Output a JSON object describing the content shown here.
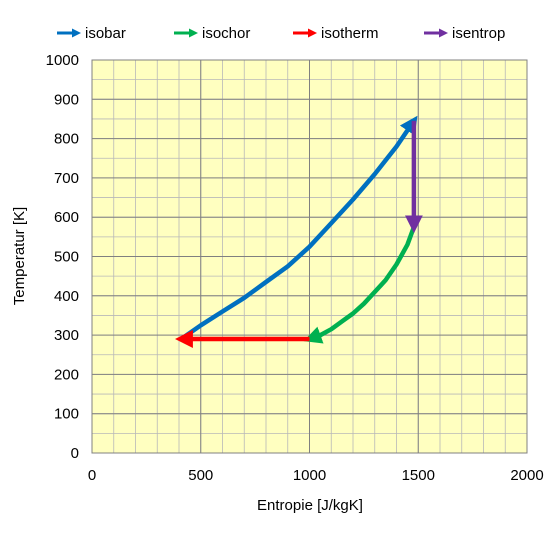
{
  "chart_data": {
    "type": "line",
    "title": "",
    "xlabel": "Entropie [J/kgK]",
    "ylabel": "Temperatur  [K]",
    "xlim": [
      0,
      2000
    ],
    "ylim": [
      0,
      1000
    ],
    "x_ticks": [
      0,
      500,
      1000,
      1500,
      2000
    ],
    "y_ticks": [
      0,
      100,
      200,
      300,
      400,
      500,
      600,
      700,
      800,
      900,
      1000
    ],
    "x_tick_labels": [
      "0",
      "500",
      "1000",
      "1500",
      "2000"
    ],
    "y_tick_labels": [
      "0",
      "100",
      "200",
      "300",
      "400",
      "500",
      "600",
      "700",
      "800",
      "900",
      "1000"
    ],
    "x_minor_step": 100,
    "y_minor_step": 50,
    "grid": true,
    "plot_background": "#ffffc0",
    "legend_position": "top",
    "series": [
      {
        "name": "isobar",
        "color": "#0070c0",
        "x": [
          410,
          500,
          600,
          700,
          800,
          900,
          1000,
          1100,
          1200,
          1300,
          1400,
          1480
        ],
        "y": [
          290,
          325,
          360,
          395,
          435,
          475,
          525,
          585,
          645,
          710,
          780,
          845
        ]
      },
      {
        "name": "isochor",
        "color": "#00b050",
        "x": [
          1480,
          1450,
          1400,
          1350,
          1300,
          1250,
          1200,
          1150,
          1100,
          1050,
          1000
        ],
        "y": [
          575,
          530,
          480,
          440,
          410,
          380,
          355,
          335,
          315,
          300,
          290
        ]
      },
      {
        "name": "isotherm",
        "color": "#ff0000",
        "x": [
          1000,
          410
        ],
        "y": [
          290,
          290
        ]
      },
      {
        "name": "isentrop",
        "color": "#7030a0",
        "x": [
          1480,
          1480
        ],
        "y": [
          845,
          575
        ]
      }
    ]
  }
}
